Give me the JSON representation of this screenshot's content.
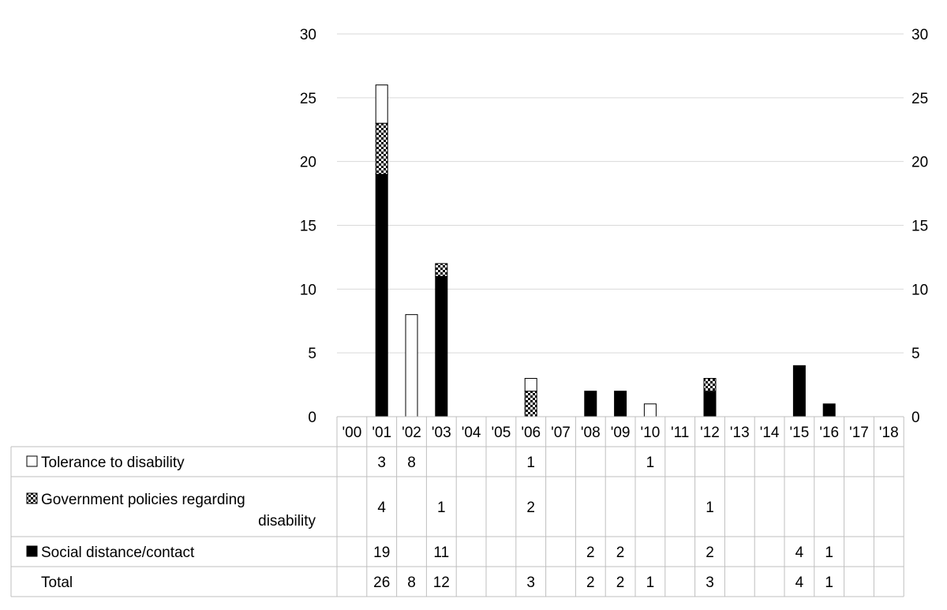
{
  "chart_data": {
    "type": "bar",
    "stacked": true,
    "categories": [
      "'00",
      "'01",
      "'02",
      "'03",
      "'04",
      "'05",
      "'06",
      "'07",
      "'08",
      "'09",
      "'10",
      "'11",
      "'12",
      "'13",
      "'14",
      "'15",
      "'16",
      "'17",
      "'18"
    ],
    "series": [
      {
        "name": "Social distance/contact",
        "fill": "solid-black",
        "values": [
          null,
          19,
          null,
          11,
          null,
          null,
          null,
          null,
          2,
          2,
          null,
          null,
          2,
          null,
          null,
          4,
          1,
          null,
          null
        ]
      },
      {
        "name": "Government policies regarding disability",
        "fill": "checker-pattern",
        "values": [
          null,
          4,
          null,
          1,
          null,
          null,
          2,
          null,
          null,
          null,
          null,
          null,
          1,
          null,
          null,
          null,
          null,
          null,
          null
        ]
      },
      {
        "name": "Tolerance to disability",
        "fill": "white",
        "values": [
          null,
          3,
          8,
          null,
          null,
          null,
          1,
          null,
          null,
          null,
          1,
          null,
          null,
          null,
          null,
          null,
          null,
          null,
          null
        ]
      }
    ],
    "totals": {
      "name": "Total",
      "values": [
        null,
        26,
        8,
        12,
        null,
        null,
        3,
        null,
        2,
        2,
        1,
        null,
        3,
        null,
        null,
        4,
        1,
        null,
        null
      ]
    },
    "ylim": [
      0,
      30
    ],
    "yticks": [
      0,
      5,
      10,
      15,
      20,
      25,
      30
    ],
    "secondary_yticks": [
      0,
      5,
      10,
      15,
      20,
      25,
      30
    ],
    "grid": true,
    "legend": "data-table-left",
    "colors": {
      "solid": "#000000",
      "outline": "#000000",
      "grid": "#d9d9d9",
      "table_border": "#bfbfbf"
    }
  }
}
